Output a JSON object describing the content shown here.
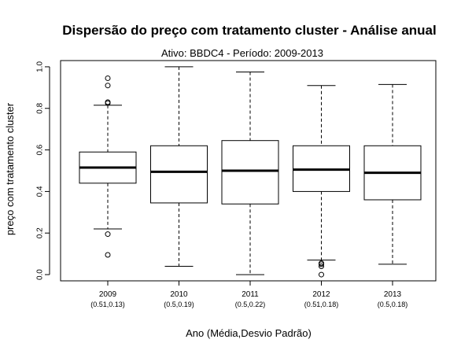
{
  "chart_data": {
    "type": "boxplot",
    "title": "Dispersão do  preço com tratamento cluster  - Análise anual",
    "subtitle": "Ativo: BBDC4 - Período: 2009-2013",
    "xlabel": "Ano (Média,Desvio Padrão)",
    "ylabel": "preço com tratamento cluster",
    "ylim": [
      -0.03,
      1.03
    ],
    "yticks": [
      0.0,
      0.2,
      0.4,
      0.6,
      0.8,
      1.0
    ],
    "ytick_labels": [
      "0.0",
      "0.2",
      "0.4",
      "0.6",
      "0.8",
      "1.0"
    ],
    "grid": false,
    "categories": [
      "2009",
      "2010",
      "2011",
      "2012",
      "2013"
    ],
    "category_stats": [
      "(0.51,0.13)",
      "(0.5,0.19)",
      "(0.5,0.22)",
      "(0.51,0.18)",
      "(0.5,0.18)"
    ],
    "boxes": [
      {
        "whisker_low": 0.22,
        "q1": 0.44,
        "median": 0.515,
        "q3": 0.59,
        "whisker_high": 0.815,
        "outliers": [
          0.095,
          0.195,
          0.825,
          0.83,
          0.91,
          0.945
        ]
      },
      {
        "whisker_low": 0.04,
        "q1": 0.345,
        "median": 0.495,
        "q3": 0.62,
        "whisker_high": 1.0,
        "outliers": []
      },
      {
        "whisker_low": 0.0,
        "q1": 0.34,
        "median": 0.5,
        "q3": 0.645,
        "whisker_high": 0.975,
        "outliers": []
      },
      {
        "whisker_low": 0.07,
        "q1": 0.4,
        "median": 0.505,
        "q3": 0.62,
        "whisker_high": 0.91,
        "outliers": [
          0.0,
          0.04,
          0.05,
          0.055
        ]
      },
      {
        "whisker_low": 0.05,
        "q1": 0.36,
        "median": 0.49,
        "q3": 0.62,
        "whisker_high": 0.915,
        "outliers": []
      }
    ]
  }
}
